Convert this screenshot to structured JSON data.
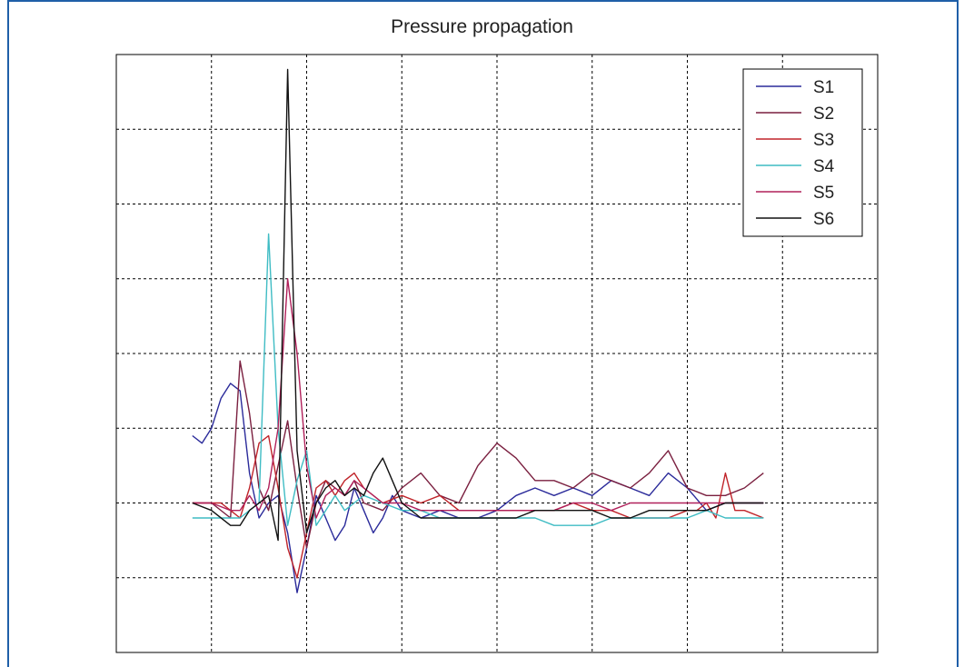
{
  "colors": {
    "S1": "#2a2a9a",
    "S2": "#7a1f3f",
    "S3": "#c0242a",
    "S4": "#3fbcc4",
    "S5": "#b0205a",
    "S6": "#111111"
  },
  "chart_data": {
    "type": "line",
    "title": "Pressure propagation",
    "xlabel": "",
    "ylabel": "",
    "xlim": [
      0,
      8
    ],
    "ylim": [
      -2,
      6
    ],
    "grid": true,
    "legend_position": "top-right",
    "series": [
      {
        "name": "S1",
        "x": [
          0.8,
          0.9,
          1.0,
          1.1,
          1.2,
          1.3,
          1.4,
          1.5,
          1.6,
          1.7,
          1.8,
          1.9,
          2.0,
          2.1,
          2.2,
          2.3,
          2.4,
          2.5,
          2.6,
          2.7,
          2.8,
          2.9,
          3.0,
          3.2,
          3.4,
          3.6,
          3.8,
          4.0,
          4.2,
          4.4,
          4.6,
          4.8,
          5.0,
          5.2,
          5.4,
          5.6,
          5.8,
          6.0,
          6.2,
          6.4,
          6.6,
          6.8
        ],
        "y": [
          0.9,
          0.8,
          1.0,
          1.4,
          1.6,
          1.5,
          0.4,
          -0.2,
          0.0,
          0.1,
          -0.4,
          -1.2,
          -0.6,
          0.1,
          -0.2,
          -0.5,
          -0.3,
          0.2,
          -0.1,
          -0.4,
          -0.2,
          0.1,
          -0.1,
          -0.2,
          -0.1,
          -0.2,
          -0.2,
          -0.1,
          0.1,
          0.2,
          0.1,
          0.2,
          0.1,
          0.3,
          0.2,
          0.1,
          0.4,
          0.2,
          -0.1,
          0.0,
          0.0,
          0.0
        ]
      },
      {
        "name": "S2",
        "x": [
          0.8,
          1.0,
          1.2,
          1.3,
          1.4,
          1.5,
          1.6,
          1.7,
          1.8,
          1.9,
          2.0,
          2.1,
          2.2,
          2.3,
          2.4,
          2.5,
          2.6,
          2.8,
          3.0,
          3.2,
          3.4,
          3.6,
          3.8,
          4.0,
          4.2,
          4.4,
          4.6,
          4.8,
          5.0,
          5.2,
          5.4,
          5.6,
          5.8,
          6.0,
          6.2,
          6.4,
          6.6,
          6.8
        ],
        "y": [
          0.0,
          0.0,
          -0.2,
          1.9,
          1.2,
          0.2,
          -0.1,
          0.5,
          1.1,
          0.2,
          -0.6,
          0.0,
          0.3,
          0.2,
          0.1,
          0.3,
          0.0,
          -0.1,
          0.2,
          0.4,
          0.1,
          0.0,
          0.5,
          0.8,
          0.6,
          0.3,
          0.3,
          0.2,
          0.4,
          0.3,
          0.2,
          0.4,
          0.7,
          0.2,
          0.1,
          0.1,
          0.2,
          0.4
        ]
      },
      {
        "name": "S3",
        "x": [
          0.8,
          1.0,
          1.1,
          1.2,
          1.3,
          1.4,
          1.5,
          1.6,
          1.7,
          1.8,
          1.9,
          2.0,
          2.1,
          2.2,
          2.3,
          2.4,
          2.5,
          2.6,
          2.8,
          3.0,
          3.2,
          3.4,
          3.6,
          3.8,
          4.0,
          4.2,
          4.4,
          4.6,
          4.8,
          5.0,
          5.2,
          5.4,
          5.6,
          5.8,
          6.0,
          6.1,
          6.2,
          6.3,
          6.4,
          6.5,
          6.6,
          6.8
        ],
        "y": [
          0.0,
          0.0,
          0.0,
          -0.1,
          -0.2,
          0.2,
          0.8,
          0.9,
          0.2,
          -0.6,
          -1.0,
          -0.4,
          0.2,
          0.3,
          0.1,
          0.3,
          0.4,
          0.2,
          0.0,
          0.1,
          0.0,
          0.1,
          -0.1,
          -0.1,
          -0.1,
          -0.1,
          -0.1,
          -0.1,
          0.0,
          -0.1,
          -0.1,
          -0.2,
          -0.2,
          -0.2,
          -0.1,
          -0.1,
          0.0,
          -0.2,
          0.4,
          -0.1,
          -0.1,
          -0.2
        ]
      },
      {
        "name": "S4",
        "x": [
          0.8,
          1.0,
          1.2,
          1.3,
          1.4,
          1.5,
          1.6,
          1.7,
          1.8,
          1.9,
          2.0,
          2.1,
          2.2,
          2.3,
          2.4,
          2.5,
          2.6,
          2.8,
          3.0,
          3.2,
          3.4,
          3.6,
          3.8,
          4.0,
          4.2,
          4.4,
          4.6,
          4.8,
          5.0,
          5.2,
          5.4,
          5.6,
          5.8,
          6.0,
          6.2,
          6.4,
          6.6,
          6.8
        ],
        "y": [
          -0.2,
          -0.2,
          -0.2,
          -0.2,
          -0.1,
          0.0,
          3.6,
          1.0,
          -0.3,
          0.3,
          0.7,
          -0.3,
          -0.1,
          0.1,
          -0.1,
          0.0,
          0.1,
          0.0,
          -0.1,
          -0.1,
          -0.2,
          -0.2,
          -0.2,
          -0.2,
          -0.2,
          -0.2,
          -0.3,
          -0.3,
          -0.3,
          -0.2,
          -0.2,
          -0.2,
          -0.2,
          -0.2,
          -0.1,
          -0.2,
          -0.2,
          -0.2
        ]
      },
      {
        "name": "S5",
        "x": [
          0.8,
          1.0,
          1.2,
          1.3,
          1.4,
          1.5,
          1.6,
          1.7,
          1.8,
          1.9,
          2.0,
          2.1,
          2.2,
          2.3,
          2.4,
          2.5,
          2.6,
          2.8,
          3.0,
          3.2,
          3.4,
          3.6,
          3.8,
          4.0,
          4.2,
          4.4,
          4.6,
          4.8,
          5.0,
          5.2,
          5.4,
          5.6,
          5.8,
          6.0,
          6.2,
          6.4,
          6.6,
          6.8
        ],
        "y": [
          0.0,
          0.0,
          -0.1,
          -0.1,
          0.1,
          -0.1,
          0.2,
          1.0,
          3.0,
          2.0,
          0.5,
          -0.2,
          0.1,
          0.2,
          0.1,
          0.3,
          0.2,
          0.0,
          0.0,
          -0.1,
          -0.1,
          -0.1,
          -0.1,
          -0.1,
          -0.1,
          -0.1,
          -0.1,
          0.0,
          0.0,
          -0.1,
          0.0,
          0.0,
          0.0,
          0.0,
          0.0,
          0.0,
          0.0,
          0.0
        ]
      },
      {
        "name": "S6",
        "x": [
          0.8,
          1.0,
          1.2,
          1.3,
          1.4,
          1.5,
          1.6,
          1.7,
          1.8,
          1.9,
          2.0,
          2.1,
          2.2,
          2.3,
          2.4,
          2.5,
          2.6,
          2.7,
          2.8,
          2.9,
          3.0,
          3.2,
          3.4,
          3.6,
          3.8,
          4.0,
          4.2,
          4.4,
          4.6,
          4.8,
          5.0,
          5.2,
          5.4,
          5.6,
          5.8,
          6.0,
          6.2,
          6.4,
          6.6,
          6.8
        ],
        "y": [
          0.0,
          -0.1,
          -0.3,
          -0.3,
          -0.1,
          0.0,
          0.1,
          -0.5,
          5.8,
          0.7,
          -0.4,
          0.0,
          0.2,
          0.3,
          0.1,
          0.2,
          0.1,
          0.4,
          0.6,
          0.3,
          0.0,
          -0.2,
          -0.2,
          -0.2,
          -0.2,
          -0.2,
          -0.2,
          -0.1,
          -0.1,
          -0.1,
          -0.1,
          -0.2,
          -0.2,
          -0.1,
          -0.1,
          -0.1,
          -0.1,
          0.0,
          0.0,
          0.0
        ]
      }
    ]
  }
}
